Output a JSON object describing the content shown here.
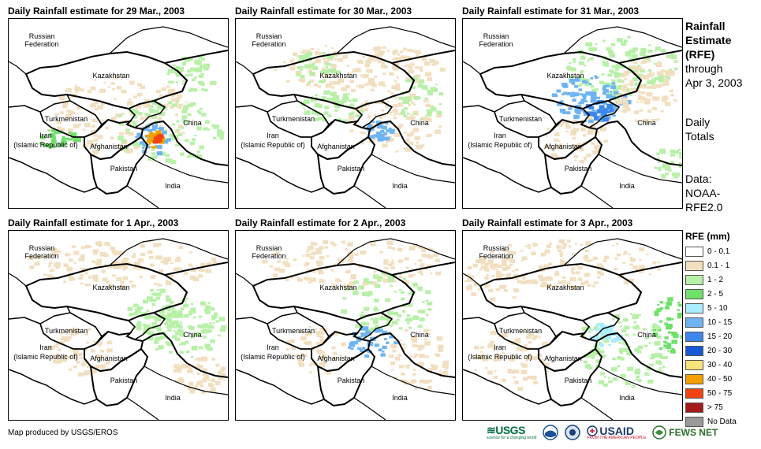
{
  "panels": [
    {
      "title": "Daily Rainfall estimate for 29 Mar., 2003",
      "labels": {
        "russia": "Russian",
        "federation": "Federation",
        "kazakhstan": "Kazakhstan",
        "turkmenistan": "Turkmenistan",
        "iran": "Iran",
        "iran2": "(Islamic Republic of)",
        "afghanistan": "Afghanistan",
        "pakistan": "Pakistan",
        "china": "China",
        "india": "India"
      }
    },
    {
      "title": "Daily Rainfall estimate for 30 Mar., 2003",
      "labels": {
        "russia": "Russian",
        "federation": "Federation",
        "kazakhstan": "Kazakhstan",
        "turkmenistan": "Turkmenistan",
        "iran": "Iran",
        "iran2": "(Islamic Republic of)",
        "afghanistan": "Afghanistan",
        "pakistan": "Pakistan",
        "china": "China",
        "india": "India"
      }
    },
    {
      "title": "Daily Rainfall estimate for 31 Mar., 2003",
      "labels": {
        "russia": "Russian",
        "federation": "Federation",
        "kazakhstan": "Kazakhstan",
        "turkmenistan": "Turkmenistan",
        "iran": "Iran",
        "iran2": "(Islamic Republic of)",
        "afghanistan": "Afghanistan",
        "pakistan": "Pakistan",
        "china": "China",
        "india": "India"
      }
    },
    {
      "title": "Daily Rainfall estimate for 1 Apr., 2003",
      "labels": {
        "russia": "Russian",
        "federation": "Federation",
        "kazakhstan": "Kazakhstan",
        "turkmenistan": "Turkmenistan",
        "iran": "Iran",
        "iran2": "(Islamic Republic of)",
        "afghanistan": "Afghanistan",
        "pakistan": "Pakistan",
        "china": "China",
        "india": "India"
      }
    },
    {
      "title": "Daily Rainfall estimate for 2 Apr., 2003",
      "labels": {
        "russia": "Russian",
        "federation": "Federation",
        "kazakhstan": "Kazakhstan",
        "turkmenistan": "Turkmenistan",
        "iran": "Iran",
        "iran2": "(Islamic Republic of)",
        "afghanistan": "Afghanistan",
        "pakistan": "Pakistan",
        "china": "China",
        "india": "India"
      }
    },
    {
      "title": "Daily Rainfall estimate for 3 Apr., 2003",
      "labels": {
        "russia": "Russian",
        "federation": "Federation",
        "kazakhstan": "Kazakhstan",
        "turkmenistan": "Turkmenistan",
        "iran": "Iran",
        "iran2": "(Islamic Republic of)",
        "afghanistan": "Afghanistan",
        "pakistan": "Pakistan",
        "china": "China",
        "india": "India"
      }
    }
  ],
  "sidebar": {
    "title1": "Rainfall",
    "title2": "Estimate",
    "title3": "(RFE)",
    "through1": "through",
    "through2": "Apr 3, 2003",
    "daily1": "Daily",
    "daily2": "Totals",
    "data1": "Data:",
    "data2": "NOAA-",
    "data3": "RFE2.0"
  },
  "legend": {
    "title": "RFE (mm)",
    "items": [
      {
        "label": "0 - 0.1",
        "color": "#ffffff"
      },
      {
        "label": "0.1 - 1",
        "color": "#f2dfc0"
      },
      {
        "label": "1 - 2",
        "color": "#b8f0a8"
      },
      {
        "label": "2 - 5",
        "color": "#6fe06a"
      },
      {
        "label": "5 - 10",
        "color": "#a8eefc"
      },
      {
        "label": "10 - 15",
        "color": "#6fb4f2"
      },
      {
        "label": "15 - 20",
        "color": "#3d86ea"
      },
      {
        "label": "20 - 30",
        "color": "#1659d6"
      },
      {
        "label": "30 - 40",
        "color": "#f8e27a"
      },
      {
        "label": "40 - 50",
        "color": "#f4a100"
      },
      {
        "label": "50 - 75",
        "color": "#f04412"
      },
      {
        "label": "> 75",
        "color": "#a41b1b"
      },
      {
        "label": "No Data",
        "color": "#9a9a9a"
      }
    ]
  },
  "footer": {
    "credit": "Map produced by USGS/EROS"
  },
  "logos": {
    "usgs": "USGS",
    "usgs_tag": "science for a changing world",
    "usaid": "USAID",
    "usaid_tag": "FROM THE AMERICAN PEOPLE",
    "fews": "FEWS NET"
  }
}
